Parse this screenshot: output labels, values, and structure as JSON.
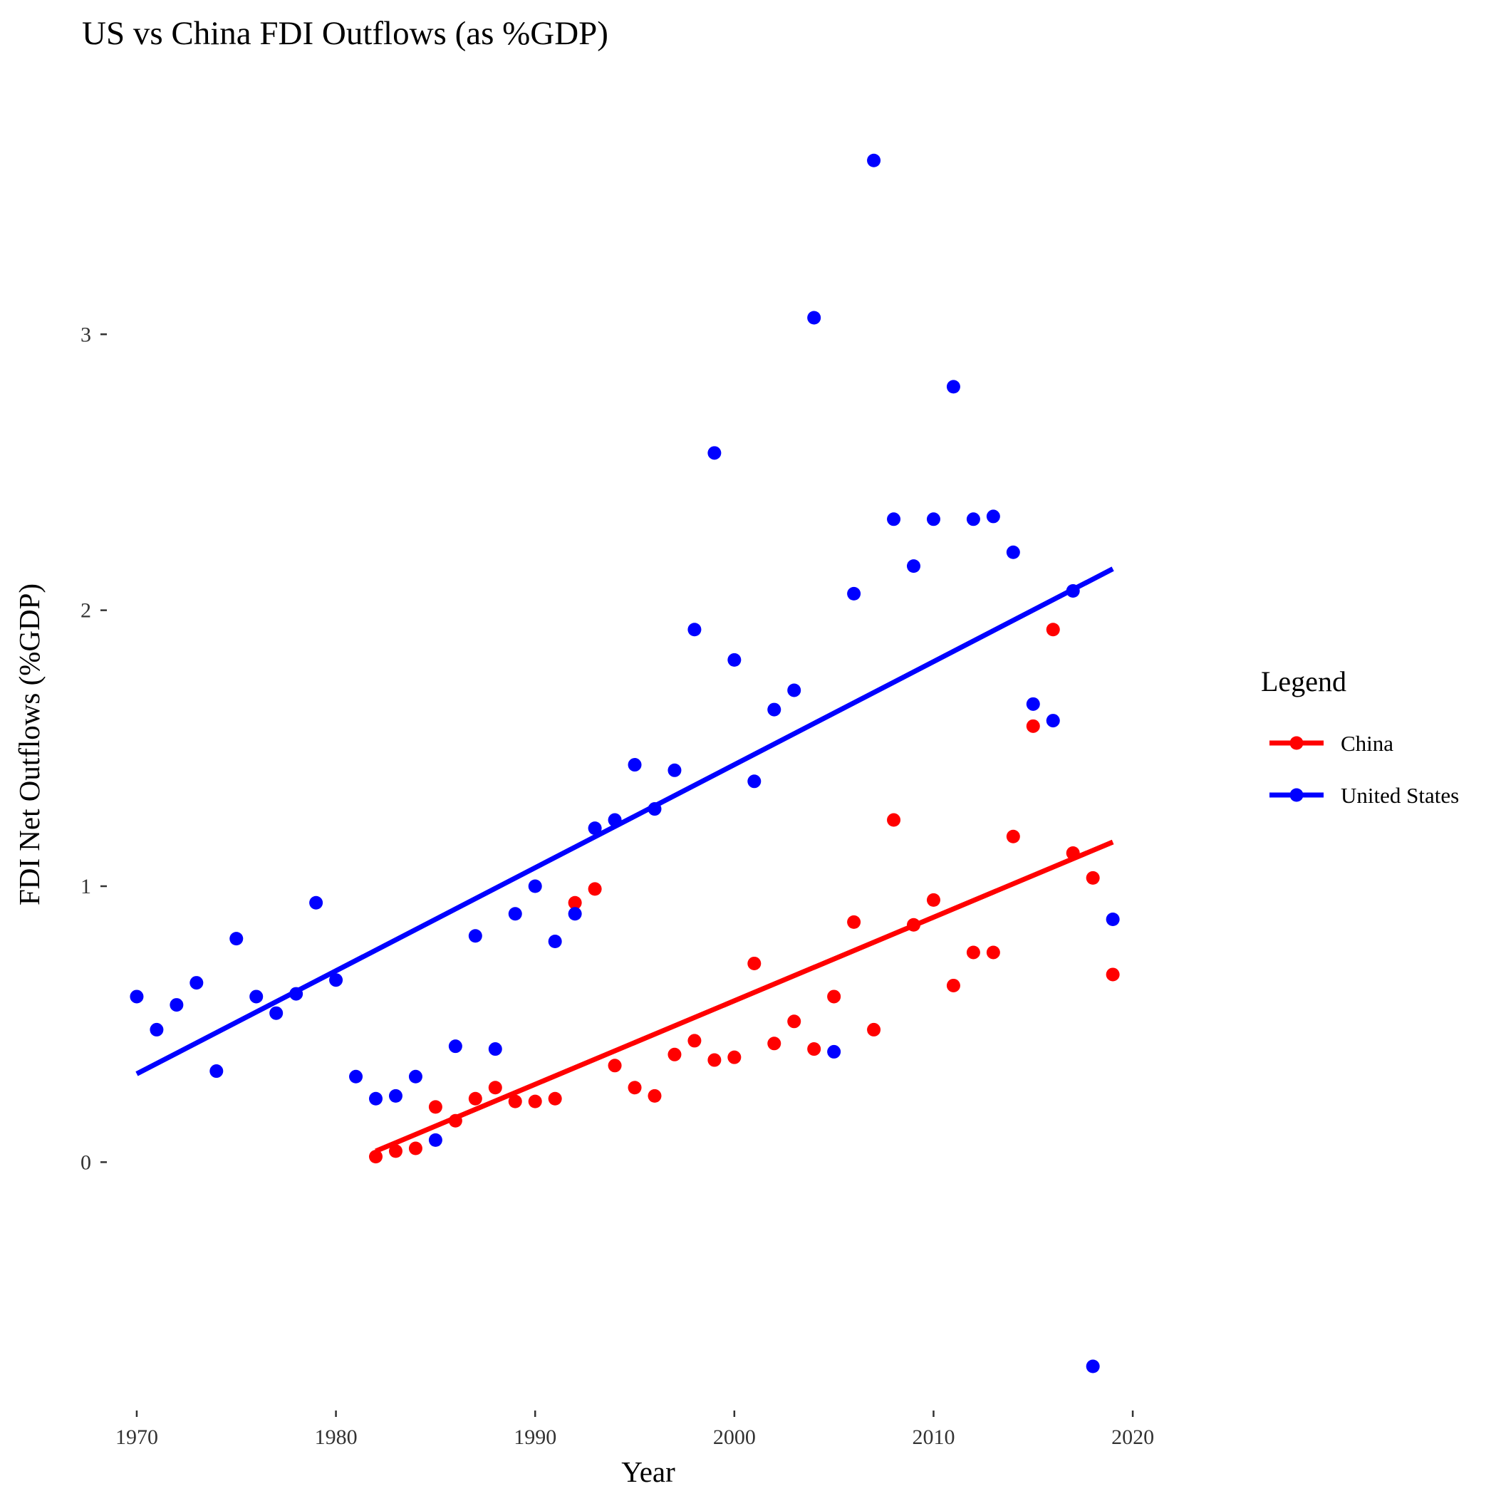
{
  "chart_data": {
    "type": "scatter",
    "title": "US vs China FDI Outflows (as %GDP)",
    "xlabel": "Year",
    "ylabel": "FDI Net Outflows (%GDP)",
    "xlim": [
      1968.5,
      2022.5
    ],
    "ylim": [
      -0.9,
      3.85
    ],
    "x_ticks": [
      1970,
      1980,
      1990,
      2000,
      2010,
      2020
    ],
    "y_ticks": [
      0,
      1,
      2,
      3
    ],
    "grid": false,
    "legend": {
      "title": "Legend",
      "placement": "right",
      "entries": [
        "China",
        "United States"
      ]
    },
    "series": [
      {
        "name": "China",
        "color": "#ff0000",
        "x": [
          1982,
          1983,
          1984,
          1985,
          1986,
          1987,
          1988,
          1989,
          1990,
          1991,
          1992,
          1993,
          1994,
          1995,
          1996,
          1997,
          1998,
          1999,
          2000,
          2001,
          2002,
          2003,
          2004,
          2005,
          2006,
          2007,
          2008,
          2009,
          2010,
          2011,
          2012,
          2013,
          2014,
          2015,
          2016,
          2017,
          2018,
          2019
        ],
        "y": [
          0.02,
          0.04,
          0.05,
          0.2,
          0.15,
          0.23,
          0.27,
          0.22,
          0.22,
          0.23,
          0.94,
          0.99,
          0.35,
          0.27,
          0.24,
          0.39,
          0.44,
          0.37,
          0.38,
          0.72,
          0.43,
          0.51,
          0.41,
          0.6,
          0.87,
          0.48,
          1.24,
          0.86,
          0.95,
          0.64,
          0.76,
          0.76,
          1.18,
          1.58,
          1.93,
          1.12,
          1.03,
          0.68
        ],
        "trend": {
          "x": [
            1982,
            2019
          ],
          "y": [
            0.04,
            1.16
          ]
        }
      },
      {
        "name": "United States",
        "color": "#0000ff",
        "x": [
          1970,
          1971,
          1972,
          1973,
          1974,
          1975,
          1976,
          1977,
          1978,
          1979,
          1980,
          1981,
          1982,
          1983,
          1984,
          1985,
          1986,
          1987,
          1988,
          1989,
          1990,
          1991,
          1992,
          1993,
          1994,
          1995,
          1996,
          1997,
          1998,
          1999,
          2000,
          2001,
          2002,
          2003,
          2004,
          2005,
          2006,
          2007,
          2008,
          2009,
          2010,
          2011,
          2012,
          2013,
          2014,
          2015,
          2016,
          2017,
          2018,
          2019
        ],
        "y": [
          0.6,
          0.48,
          0.57,
          0.65,
          0.33,
          0.81,
          0.6,
          0.54,
          0.61,
          0.94,
          0.66,
          0.31,
          0.23,
          0.24,
          0.31,
          0.08,
          0.42,
          0.82,
          0.41,
          0.9,
          1.0,
          0.8,
          0.9,
          1.21,
          1.24,
          1.44,
          1.28,
          1.42,
          1.93,
          2.57,
          1.82,
          1.38,
          1.64,
          1.71,
          3.06,
          0.4,
          2.06,
          3.63,
          2.33,
          2.16,
          2.33,
          2.81,
          2.33,
          2.34,
          2.21,
          1.66,
          1.6,
          2.07,
          -0.74,
          0.88
        ],
        "trend": {
          "x": [
            1970,
            2019
          ],
          "y": [
            0.32,
            2.15
          ]
        }
      }
    ]
  }
}
